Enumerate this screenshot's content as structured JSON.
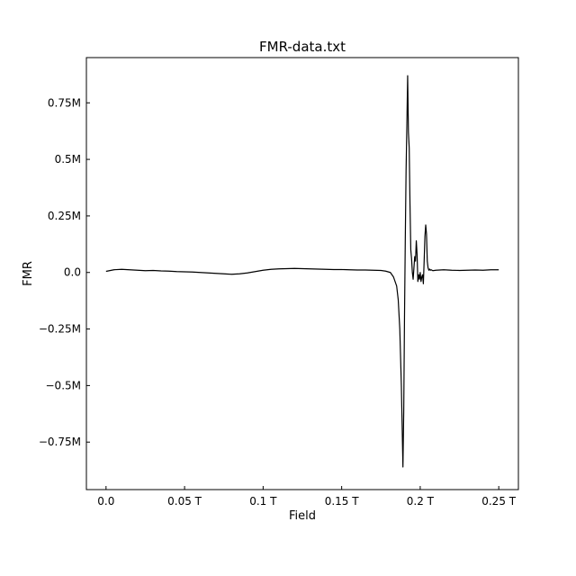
{
  "chart_data": {
    "type": "line",
    "title": "FMR-data.txt",
    "xlabel": "Field",
    "ylabel": "FMR",
    "xlim": [
      -0.0125,
      0.2625
    ],
    "ylim": [
      -0.96,
      0.95
    ],
    "grid": false,
    "legend": "none",
    "line_color": "#000000",
    "x_ticks": [
      {
        "value": 0.0,
        "label": "0.0"
      },
      {
        "value": 0.05,
        "label": "0.05 T"
      },
      {
        "value": 0.1,
        "label": "0.1 T"
      },
      {
        "value": 0.15,
        "label": "0.15 T"
      },
      {
        "value": 0.2,
        "label": "0.2 T"
      },
      {
        "value": 0.25,
        "label": "0.25 T"
      }
    ],
    "y_ticks": [
      {
        "value": 0.75,
        "label": "0.75M"
      },
      {
        "value": 0.5,
        "label": "0.5M"
      },
      {
        "value": 0.25,
        "label": "0.25M"
      },
      {
        "value": 0.0,
        "label": "0.0"
      },
      {
        "value": -0.25,
        "label": "−0.25M"
      },
      {
        "value": -0.5,
        "label": "−0.5M"
      },
      {
        "value": -0.75,
        "label": "−0.75M"
      }
    ],
    "series": [
      {
        "x": [
          0.0,
          0.005,
          0.01,
          0.015,
          0.02,
          0.025,
          0.03,
          0.035,
          0.04,
          0.045,
          0.05,
          0.055,
          0.06,
          0.065,
          0.07,
          0.075,
          0.08,
          0.085,
          0.09,
          0.095,
          0.1,
          0.105,
          0.11,
          0.115,
          0.12,
          0.125,
          0.13,
          0.135,
          0.14,
          0.145,
          0.15,
          0.155,
          0.16,
          0.165,
          0.17,
          0.175,
          0.178,
          0.181,
          0.183,
          0.185,
          0.186,
          0.187,
          0.188,
          0.1885,
          0.189,
          0.1895,
          0.19,
          0.1905,
          0.191,
          0.1915,
          0.192,
          0.1925,
          0.193,
          0.1935,
          0.194,
          0.1945,
          0.195,
          0.1955,
          0.196,
          0.1965,
          0.197,
          0.1975,
          0.198,
          0.1985,
          0.199,
          0.1995,
          0.2,
          0.2005,
          0.201,
          0.2015,
          0.202,
          0.2025,
          0.203,
          0.2035,
          0.204,
          0.2045,
          0.205,
          0.2055,
          0.206,
          0.2065,
          0.207,
          0.2075,
          0.208,
          0.21,
          0.215,
          0.22,
          0.225,
          0.23,
          0.235,
          0.24,
          0.245,
          0.25
        ],
        "y": [
          0.005,
          0.012,
          0.014,
          0.012,
          0.01,
          0.008,
          0.009,
          0.007,
          0.006,
          0.004,
          0.003,
          0.002,
          0.0,
          -0.002,
          -0.004,
          -0.006,
          -0.008,
          -0.006,
          -0.002,
          0.004,
          0.01,
          0.014,
          0.016,
          0.017,
          0.018,
          0.017,
          0.016,
          0.015,
          0.014,
          0.013,
          0.013,
          0.012,
          0.011,
          0.011,
          0.01,
          0.009,
          0.006,
          0.0,
          -0.02,
          -0.06,
          -0.12,
          -0.25,
          -0.5,
          -0.68,
          -0.86,
          -0.62,
          -0.2,
          0.15,
          0.45,
          0.65,
          0.87,
          0.62,
          0.55,
          0.3,
          0.1,
          0.06,
          0.0,
          -0.03,
          0.02,
          0.07,
          0.05,
          0.14,
          0.08,
          -0.04,
          -0.01,
          -0.03,
          0.0,
          -0.04,
          -0.02,
          -0.01,
          -0.05,
          0.05,
          0.16,
          0.21,
          0.17,
          0.05,
          0.02,
          0.01,
          0.015,
          0.01,
          0.012,
          0.01,
          0.008,
          0.01,
          0.012,
          0.01,
          0.009,
          0.01,
          0.011,
          0.01,
          0.012,
          0.012
        ]
      }
    ]
  }
}
